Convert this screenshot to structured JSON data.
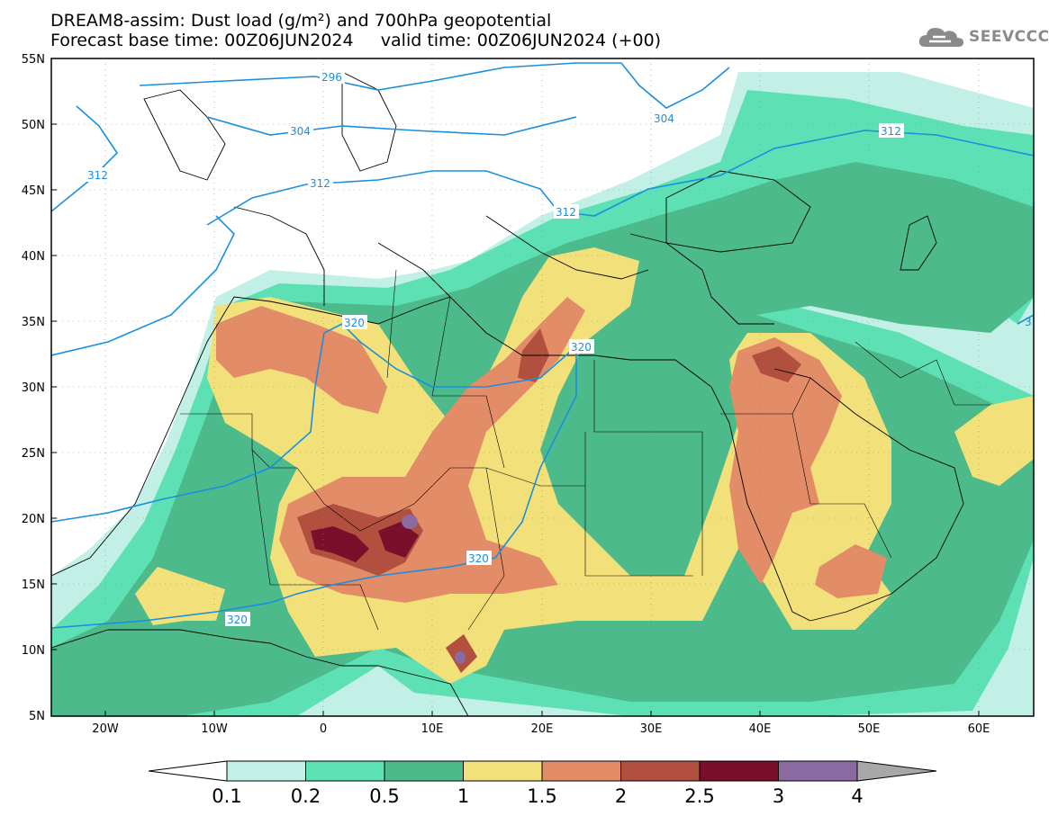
{
  "header": {
    "title_line1": "DREAM8-assim: Dust load (g/m²) and 700hPa geopotential",
    "title_line2": "Forecast base time: 00Z06JUN2024     valid time: 00Z06JUN2024 (+00)",
    "logo_text": "SEEVCCC",
    "logo_icon": "cloud-icon"
  },
  "map": {
    "lat_labels": [
      "55N",
      "50N",
      "45N",
      "40N",
      "35N",
      "30N",
      "25N",
      "20N",
      "15N",
      "10N",
      "5N"
    ],
    "lon_labels": [
      "20W",
      "10W",
      "0",
      "10E",
      "20E",
      "30E",
      "40E",
      "50E",
      "60E"
    ],
    "contour_labels": [
      "296",
      "304",
      "304",
      "312",
      "312",
      "312",
      "312",
      "320",
      "320",
      "320",
      "320",
      "3"
    ],
    "background": "#ffffff",
    "contour_color": "#1a8fe0"
  },
  "colorbar": {
    "labels": [
      "0.1",
      "0.2",
      "0.5",
      "1",
      "1.5",
      "2",
      "2.5",
      "3",
      "4"
    ],
    "colors": [
      "#c2efe6",
      "#5de0b4",
      "#4cba8a",
      "#f2e17a",
      "#e38c68",
      "#b1503f",
      "#7a0f2c",
      "#8a6aa0",
      "#a8a8a8"
    ]
  }
}
